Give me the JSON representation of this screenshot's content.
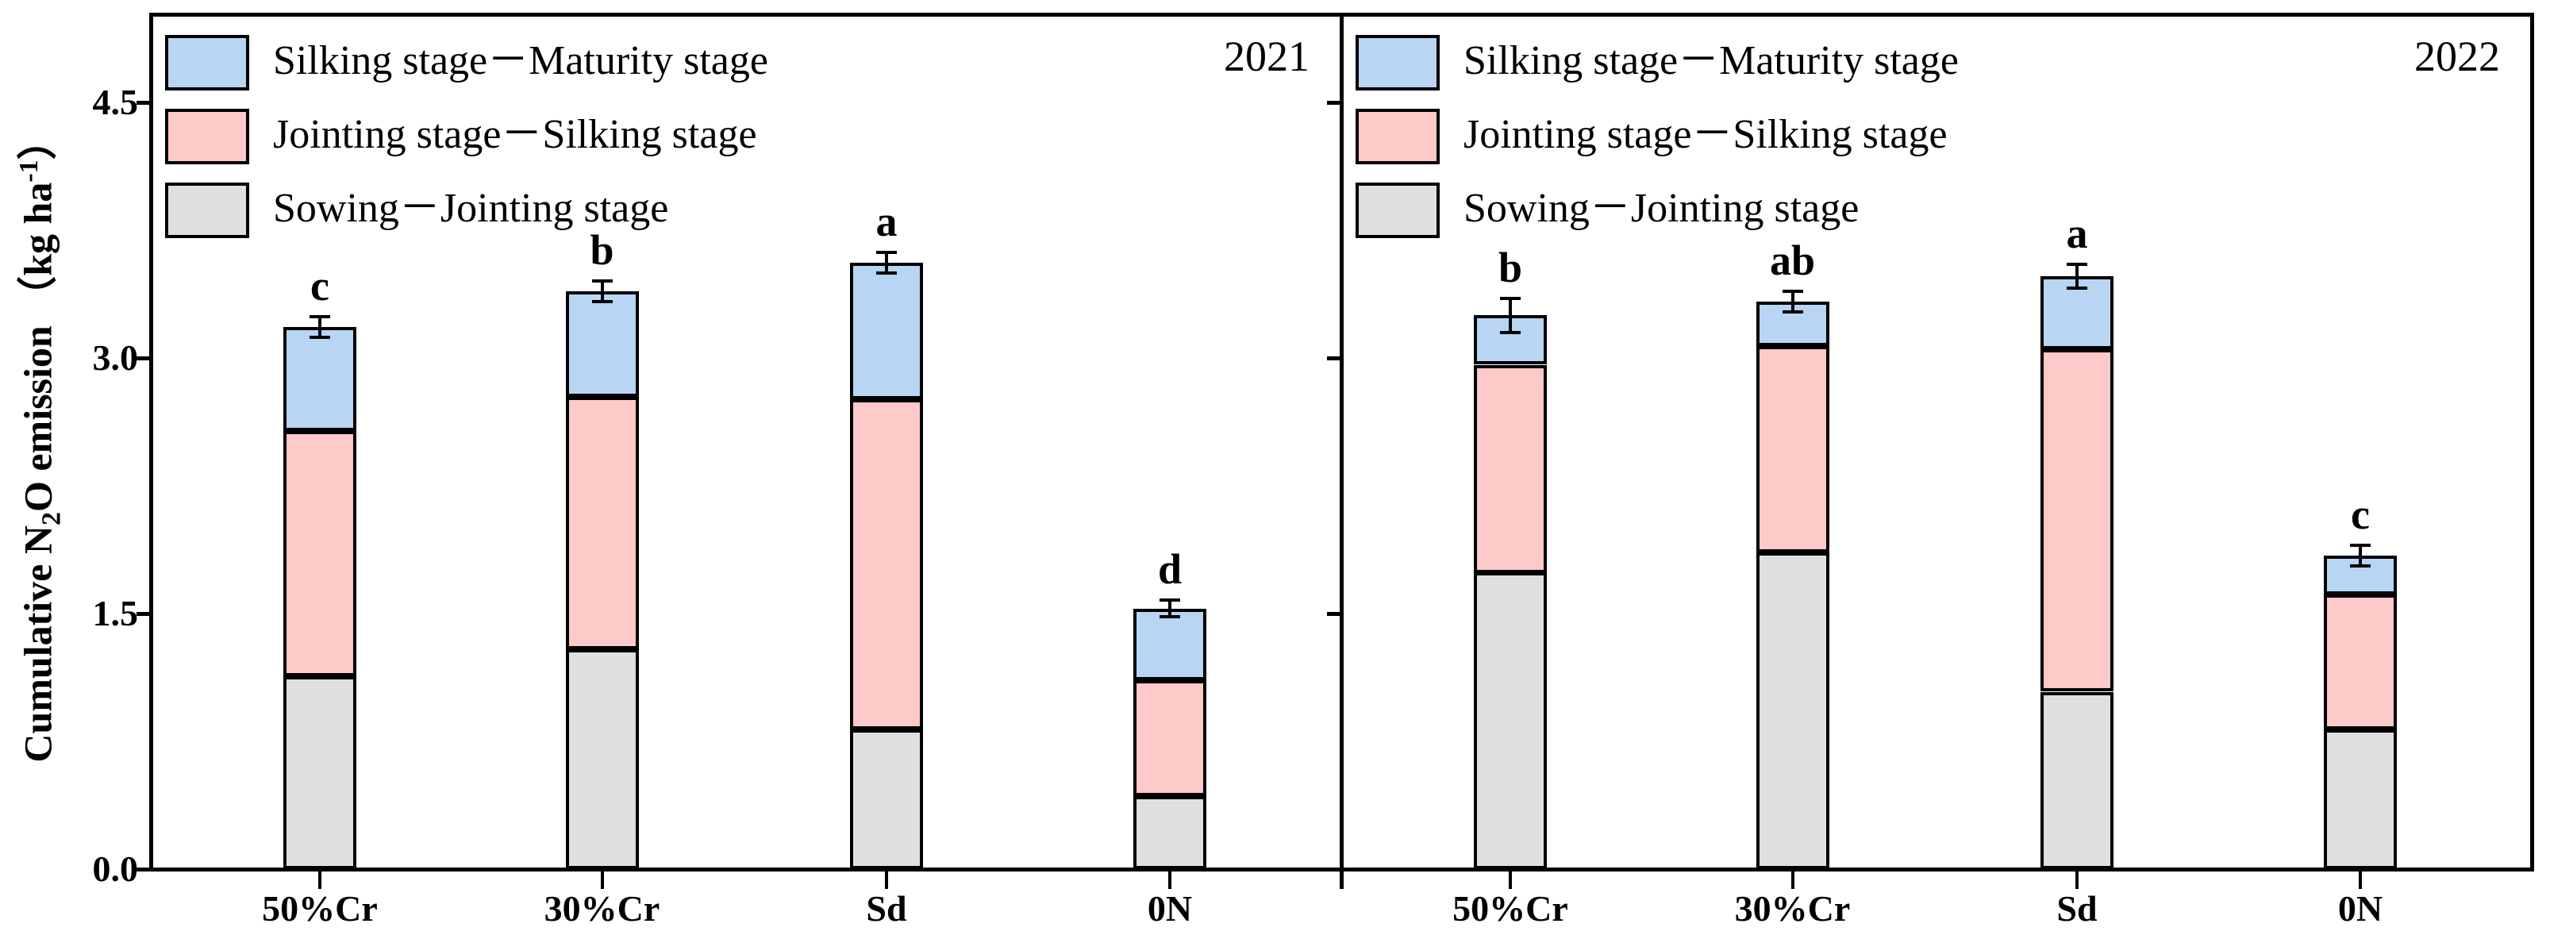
{
  "y_axis": {
    "title_parts": {
      "pre": "Cumulative N",
      "sub": "2",
      "mid": "O emission （kg ha",
      "sup": "-1",
      "post": "）"
    },
    "tick_labels": [
      "0.0",
      "1.5",
      "3.0",
      "4.5"
    ],
    "tick_values": [
      0,
      1.5,
      3.0,
      4.5
    ]
  },
  "legend": [
    {
      "key": "silking",
      "label": "Silking stage－Maturity stage"
    },
    {
      "key": "jointing",
      "label": "Jointing stage－Silking stage"
    },
    {
      "key": "sowing",
      "label": "Sowing－Jointing stage"
    }
  ],
  "colors": {
    "silking": "#B8D5F4",
    "jointing": "#FDC9C9",
    "sowing": "#DFDFDF",
    "line": "#000000"
  },
  "chart_data": {
    "type": "bar",
    "stacked": true,
    "title": "",
    "xlabel": "",
    "ylabel": "Cumulative N2O emission (kg ha-1)",
    "ylim": [
      0,
      5.02
    ],
    "grid": false,
    "legend_position": "top-left of each panel",
    "categories": [
      "50%Cr",
      "30%Cr",
      "Sd",
      "0N"
    ],
    "panels": [
      {
        "year": "2021",
        "series": [
          {
            "name": "Sowing－Jointing stage",
            "key": "sowing",
            "values": [
              1.13,
              1.29,
              0.82,
              0.43
            ]
          },
          {
            "name": "Jointing stage－Silking stage",
            "key": "jointing",
            "values": [
              1.44,
              1.48,
              1.94,
              0.68
            ]
          },
          {
            "name": "Silking stage－Maturity stage",
            "key": "silking",
            "values": [
              0.61,
              0.62,
              0.8,
              0.42
            ]
          }
        ],
        "totals": [
          3.18,
          3.39,
          3.56,
          1.53
        ],
        "error_bars": [
          0.06,
          0.06,
          0.06,
          0.05
        ],
        "sig_letters": [
          "c",
          "b",
          "a",
          "d"
        ]
      },
      {
        "year": "2022",
        "series": [
          {
            "name": "Sowing－Jointing stage",
            "key": "sowing",
            "values": [
              1.74,
              1.86,
              1.04,
              0.82
            ]
          },
          {
            "name": "Jointing stage－Silking stage",
            "key": "jointing",
            "values": [
              1.22,
              1.21,
              2.01,
              0.79
            ]
          },
          {
            "name": "Silking stage－Maturity stage",
            "key": "silking",
            "values": [
              0.29,
              0.26,
              0.43,
              0.23
            ]
          }
        ],
        "totals": [
          3.25,
          3.33,
          3.48,
          1.84
        ],
        "error_bars": [
          0.1,
          0.06,
          0.07,
          0.06
        ],
        "sig_letters": [
          "b",
          "ab",
          "a",
          "c"
        ]
      }
    ]
  }
}
